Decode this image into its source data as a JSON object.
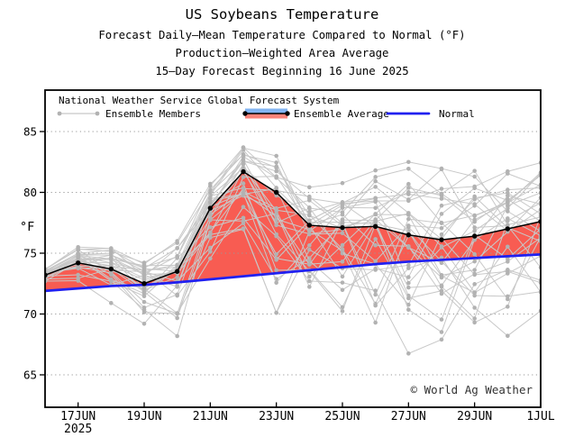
{
  "header": {
    "title": "US Soybeans Temperature",
    "subtitle_lines": [
      "Forecast Daily–Mean Temperature Compared to Normal (°F)",
      "Production–Weighted Area Average",
      "15–Day Forecast Beginning 16 June 2025"
    ]
  },
  "legend": {
    "system_label": "National Weather Service Global Forecast System",
    "members_label": "Ensemble Members",
    "average_label": "Ensemble Average",
    "normal_label": "Normal"
  },
  "chart_data": {
    "type": "line",
    "title": "US Soybeans Temperature",
    "x_dates": [
      "16JUN",
      "17JUN",
      "18JUN",
      "19JUN",
      "20JUN",
      "21JUN",
      "22JUN",
      "23JUN",
      "24JUN",
      "25JUN",
      "26JUN",
      "27JUN",
      "28JUN",
      "29JUN",
      "30JUN",
      "1JUL"
    ],
    "x_axis": {
      "tick_day_indices": [
        1,
        3,
        5,
        7,
        9,
        11,
        13,
        15
      ],
      "tick_labels": [
        "17JUN",
        "19JUN",
        "21JUN",
        "23JUN",
        "25JUN",
        "27JUN",
        "29JUN",
        "1JUL"
      ],
      "year_label": "2025",
      "year_under_index": 1
    },
    "y_axis": {
      "label": "°F",
      "ticks": [
        65,
        70,
        75,
        80,
        85
      ],
      "ylim": [
        62.3,
        88.4
      ],
      "grid": "dotted-horizontal"
    },
    "series": [
      {
        "name": "Ensemble Average",
        "values": [
          73.2,
          74.2,
          73.7,
          72.5,
          73.5,
          78.7,
          81.7,
          80.0,
          77.3,
          77.1,
          77.2,
          76.5,
          76.1,
          76.4,
          77.0,
          77.6
        ]
      },
      {
        "name": "Normal",
        "values": [
          71.9,
          72.1,
          72.3,
          72.4,
          72.6,
          72.85,
          73.1,
          73.35,
          73.6,
          73.85,
          74.1,
          74.3,
          74.45,
          74.6,
          74.75,
          74.9
        ]
      },
      {
        "name": "Ensemble Members",
        "count": 30,
        "envelope_max": [
          74.0,
          75.6,
          75.4,
          74.7,
          76.0,
          80.7,
          83.7,
          83.0,
          81.7,
          81.5,
          82.4,
          82.5,
          82.9,
          82.6,
          82.4,
          82.5
        ],
        "envelope_min": [
          72.6,
          72.6,
          70.9,
          69.2,
          66.0,
          72.3,
          76.0,
          70.1,
          70.3,
          67.3,
          65.4,
          65.5,
          67.9,
          67.7,
          68.0,
          67.5
        ]
      }
    ],
    "fill_between": "red where Ensemble Average above Normal",
    "legend_position": "top-left-inside",
    "members_seed": 7,
    "copyright": "© World Ag Weather",
    "colors": {
      "average": "#000000",
      "normal": "#2020F0",
      "fill_above": "#F85C52",
      "member_line": "#C8C8C8",
      "member_dot": "#B2B2B2",
      "grid": "#999999",
      "legend_blue": "#82B4F2",
      "legend_red": "#F9837A",
      "axis": "#000000"
    }
  }
}
